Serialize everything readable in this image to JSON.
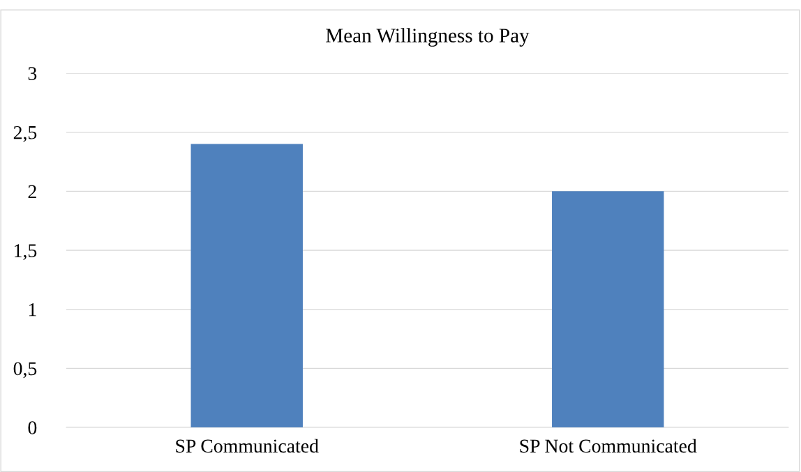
{
  "chart_data": {
    "type": "bar",
    "title": "Mean Willingness to Pay",
    "categories": [
      "SP Communicated",
      "SP Not Communicated"
    ],
    "values": [
      2.4,
      2.0
    ],
    "color": "#4f81bd",
    "ylim": [
      0,
      3
    ],
    "yticks": [
      0,
      {
        "value": 0.5,
        "label": "0,5"
      },
      1,
      {
        "value": 1.5,
        "label": "1,5"
      },
      2,
      {
        "value": 2.5,
        "label": "2,5"
      },
      3
    ],
    "grid": "y",
    "legend": false
  }
}
